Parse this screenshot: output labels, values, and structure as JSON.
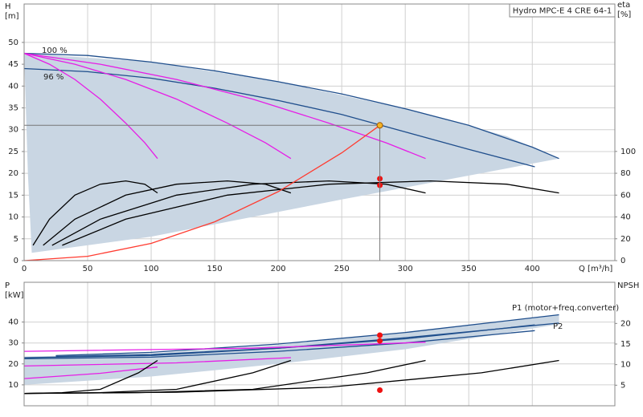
{
  "chart_data": [
    {
      "type": "line",
      "title": "Hydro MPC-E 4 CRE 64-1",
      "y_label": "H",
      "y_unit": "[m]",
      "y2_label": "eta",
      "y2_unit": "[%]",
      "x_label": "Q [m³/h]",
      "xlim": [
        0,
        465
      ],
      "xticks": [
        0,
        50,
        100,
        150,
        200,
        250,
        300,
        350,
        400
      ],
      "ylim": [
        0,
        58.8
      ],
      "yticks": [
        0,
        5,
        10,
        15,
        20,
        25,
        30,
        35,
        40,
        45,
        50
      ],
      "y2lim": [
        0,
        235
      ],
      "y2ticks": [
        0,
        20,
        40,
        60,
        80,
        100
      ],
      "grid": true,
      "annotations": [
        "100 %",
        "96 %"
      ],
      "series": [
        {
          "style": "area",
          "color": "#c9d6e3",
          "x": [
            0,
            100,
            200,
            300,
            380,
            421,
            250,
            100,
            6,
            3
          ],
          "values": [
            47.5,
            45.5,
            41,
            34.8,
            28.5,
            23.4,
            14,
            5.5,
            1.8,
            20
          ]
        },
        {
          "style": "line",
          "color": "#1f4e8c",
          "x": [
            0,
            50,
            100,
            150,
            200,
            250,
            300,
            350,
            400,
            421
          ],
          "values": [
            47.5,
            47,
            45.5,
            43.5,
            41,
            38.2,
            34.8,
            31,
            26,
            23.4
          ]
        },
        {
          "style": "line",
          "color": "#1f4e8c",
          "x": [
            0,
            50,
            100,
            150,
            200,
            250,
            300,
            350,
            402
          ],
          "values": [
            44,
            43.3,
            41.8,
            39.5,
            36.7,
            33.5,
            29.5,
            25.5,
            21.5
          ]
        },
        {
          "style": "line",
          "color": "#e61ee6",
          "x": [
            0,
            20,
            40,
            60,
            80,
            95,
            105
          ],
          "values": [
            47.5,
            45,
            41.5,
            37,
            31.5,
            27,
            23.4
          ]
        },
        {
          "style": "line",
          "color": "#e61ee6",
          "x": [
            0,
            40,
            80,
            120,
            160,
            190,
            210
          ],
          "values": [
            47.5,
            45,
            41.5,
            37,
            31.5,
            27,
            23.4
          ]
        },
        {
          "style": "line",
          "color": "#e61ee6",
          "x": [
            0,
            60,
            120,
            180,
            240,
            285,
            316
          ],
          "values": [
            47.5,
            45,
            41.5,
            37,
            31.5,
            27,
            23.4
          ]
        },
        {
          "style": "line",
          "color": "#000000",
          "axis": "y2",
          "x": [
            7,
            20,
            40,
            60,
            80,
            95,
            105
          ],
          "values": [
            14,
            38,
            60,
            70,
            73,
            70,
            62
          ]
        },
        {
          "style": "line",
          "color": "#000000",
          "axis": "y2",
          "x": [
            15,
            40,
            80,
            120,
            160,
            190,
            210
          ],
          "values": [
            14,
            38,
            60,
            70,
            73,
            70,
            62
          ]
        },
        {
          "style": "line",
          "color": "#000000",
          "axis": "y2",
          "x": [
            22,
            60,
            120,
            180,
            240,
            285,
            316
          ],
          "values": [
            14,
            38,
            60,
            70,
            73,
            70,
            62
          ]
        },
        {
          "style": "line",
          "color": "#000000",
          "axis": "y2",
          "x": [
            30,
            80,
            160,
            240,
            320,
            380,
            421
          ],
          "values": [
            14,
            38,
            60,
            70,
            73,
            70,
            62
          ]
        },
        {
          "style": "line",
          "color": "#ff3b30",
          "x": [
            0,
            50,
            100,
            150,
            200,
            250,
            280
          ],
          "values": [
            0,
            0.99,
            3.95,
            8.9,
            15.8,
            24.7,
            31
          ]
        },
        {
          "style": "points",
          "color": "#ee1111",
          "axis": "y2",
          "x": [
            280,
            280
          ],
          "values": [
            75,
            69
          ]
        },
        {
          "style": "points",
          "color": "#f5b324",
          "guide": true,
          "x": [
            280
          ],
          "values": [
            31
          ]
        }
      ]
    },
    {
      "type": "line",
      "sharex": true,
      "y_label": "P",
      "y_unit": "[kW]",
      "y2_label": "NPSH",
      "ylim": [
        0,
        59
      ],
      "yticks": [
        10,
        20,
        30,
        40
      ],
      "y2lim": [
        0,
        30
      ],
      "y2ticks": [
        5,
        10,
        15,
        20
      ],
      "grid": true,
      "annotations": [
        "P1 (motor+freq.converter)",
        "P2"
      ],
      "series": [
        {
          "style": "area",
          "color": "#c9d6e3",
          "x": [
            0,
            100,
            200,
            300,
            421,
            421,
            300,
            200,
            100,
            0
          ],
          "values": [
            23.5,
            25,
            29,
            35,
            43.5,
            39,
            27,
            20,
            14,
            10
          ]
        },
        {
          "style": "line",
          "color": "#1f4e8c",
          "x": [
            25,
            100,
            200,
            300,
            421
          ],
          "values": [
            24,
            25.5,
            29.5,
            35,
            43.5
          ]
        },
        {
          "style": "line",
          "color": "#1f4e8c",
          "x": [
            25,
            100,
            200,
            300,
            421
          ],
          "values": [
            23.5,
            24.5,
            27.5,
            32.5,
            39.5
          ]
        },
        {
          "style": "line",
          "color": "#1f4e8c",
          "x": [
            0,
            100,
            200,
            300,
            402
          ],
          "values": [
            23,
            24,
            27.5,
            32,
            38.6
          ]
        },
        {
          "style": "line",
          "color": "#1f4e8c",
          "x": [
            0,
            100,
            200,
            300,
            402
          ],
          "values": [
            22.5,
            23.2,
            26,
            30,
            35.9
          ]
        },
        {
          "style": "line",
          "color": "#e61ee6",
          "x": [
            0,
            60,
            105
          ],
          "values": [
            13,
            15.5,
            18.5
          ]
        },
        {
          "style": "line",
          "color": "#e61ee6",
          "x": [
            0,
            120,
            210
          ],
          "values": [
            19,
            20.5,
            23
          ]
        },
        {
          "style": "line",
          "color": "#e61ee6",
          "x": [
            0,
            180,
            316
          ],
          "values": [
            26,
            27.5,
            30.4
          ]
        },
        {
          "style": "line",
          "color": "#000000",
          "axis": "y2",
          "x": [
            0,
            30,
            60,
            90,
            105
          ],
          "values": [
            3,
            3.2,
            4,
            8,
            11
          ]
        },
        {
          "style": "line",
          "color": "#000000",
          "axis": "y2",
          "x": [
            0,
            60,
            120,
            180,
            210
          ],
          "values": [
            3,
            3.2,
            4,
            8,
            11
          ]
        },
        {
          "style": "line",
          "color": "#000000",
          "axis": "y2",
          "x": [
            0,
            90,
            180,
            270,
            316
          ],
          "values": [
            3,
            3.2,
            4,
            8,
            11
          ]
        },
        {
          "style": "line",
          "color": "#000000",
          "axis": "y2",
          "x": [
            0,
            120,
            240,
            360,
            421
          ],
          "values": [
            3,
            3.3,
            4.5,
            8,
            11
          ]
        },
        {
          "style": "points",
          "color": "#ee1111",
          "x": [
            280,
            280
          ],
          "values": [
            33.7,
            31
          ]
        },
        {
          "style": "points",
          "color": "#ee1111",
          "axis": "y2",
          "x": [
            280
          ],
          "values": [
            3.8
          ]
        }
      ]
    }
  ]
}
